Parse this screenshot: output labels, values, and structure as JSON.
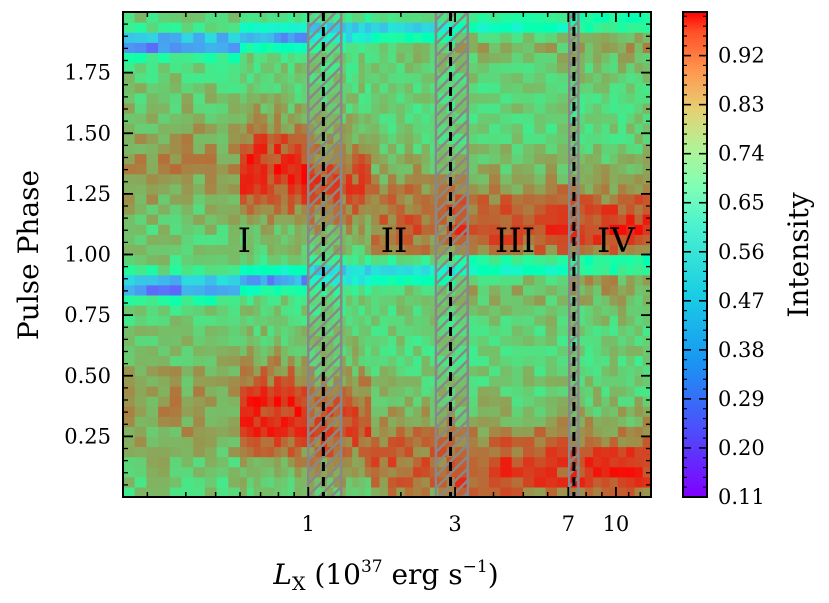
{
  "chart_data": {
    "type": "heatmap",
    "title": "",
    "xlabel": "L_X (10^37 erg s^-1)",
    "xlabel_parts": {
      "symbol": "L",
      "subscript": "X",
      "pre": " (10",
      "exp": "37",
      "mid": " erg s",
      "exp2": "−1",
      "post": ")"
    },
    "ylabel": "Pulse Phase",
    "x_scale": "log",
    "xlim": [
      0.25,
      13
    ],
    "ylim": [
      0.0,
      2.0
    ],
    "x_ticks": [
      {
        "value": 1,
        "label": "1"
      },
      {
        "value": 3,
        "label": "3"
      },
      {
        "value": 7,
        "label": "7"
      },
      {
        "value": 10,
        "label": "10"
      }
    ],
    "y_ticks": [
      {
        "value": 0.25,
        "label": "0.25"
      },
      {
        "value": 0.5,
        "label": "0.50"
      },
      {
        "value": 0.75,
        "label": "0.75"
      },
      {
        "value": 1.0,
        "label": "1.00"
      },
      {
        "value": 1.25,
        "label": "1.25"
      },
      {
        "value": 1.5,
        "label": "1.50"
      },
      {
        "value": 1.75,
        "label": "1.75"
      }
    ],
    "colorbar": {
      "label": "Intensity",
      "colormap": "rainbow",
      "range": [
        0.11,
        1.0
      ],
      "ticks": [
        {
          "value": 0.11,
          "label": "0.11"
        },
        {
          "value": 0.2,
          "label": "0.20"
        },
        {
          "value": 0.29,
          "label": "0.29"
        },
        {
          "value": 0.38,
          "label": "0.38"
        },
        {
          "value": 0.47,
          "label": "0.47"
        },
        {
          "value": 0.56,
          "label": "0.56"
        },
        {
          "value": 0.65,
          "label": "0.65"
        },
        {
          "value": 0.74,
          "label": "0.74"
        },
        {
          "value": 0.83,
          "label": "0.83"
        },
        {
          "value": 0.92,
          "label": "0.92"
        }
      ]
    },
    "regions": [
      {
        "label": "I",
        "x": 0.62,
        "phase": 1.06
      },
      {
        "label": "II",
        "x": 1.9,
        "phase": 1.06
      },
      {
        "label": "III",
        "x": 4.7,
        "phase": 1.06
      },
      {
        "label": "IV",
        "x": 10.0,
        "phase": 1.06
      }
    ],
    "transitions": [
      {
        "x": 1.12,
        "band": [
          1.0,
          1.28
        ]
      },
      {
        "x": 2.9,
        "band": [
          2.6,
          3.3
        ]
      },
      {
        "x": 7.3,
        "band": [
          7.05,
          7.55
        ]
      }
    ],
    "profile_columns": [
      {
        "x_start": 0.25,
        "x_end": 0.6,
        "dip_phase": 0.87,
        "dip_min": 0.22,
        "peak_center": 0.38,
        "peak_level": 0.82
      },
      {
        "x_start": 0.6,
        "x_end": 1.0,
        "dip_phase": 0.9,
        "dip_min": 0.3,
        "peak_center": 0.35,
        "peak_level": 0.95
      },
      {
        "x_start": 1.0,
        "x_end": 1.6,
        "dip_phase": 0.92,
        "dip_min": 0.34,
        "peak_center": 0.3,
        "peak_level": 0.9
      },
      {
        "x_start": 1.6,
        "x_end": 3.0,
        "dip_phase": 0.93,
        "dip_min": 0.4,
        "peak_center": 0.15,
        "peak_level": 0.88
      },
      {
        "x_start": 3.0,
        "x_end": 7.0,
        "dip_phase": 0.95,
        "dip_min": 0.5,
        "peak_center": 0.1,
        "peak_level": 0.92
      },
      {
        "x_start": 7.0,
        "x_end": 13.0,
        "dip_phase": 0.96,
        "dip_min": 0.55,
        "peak_center": 0.08,
        "peak_level": 0.95
      }
    ]
  }
}
